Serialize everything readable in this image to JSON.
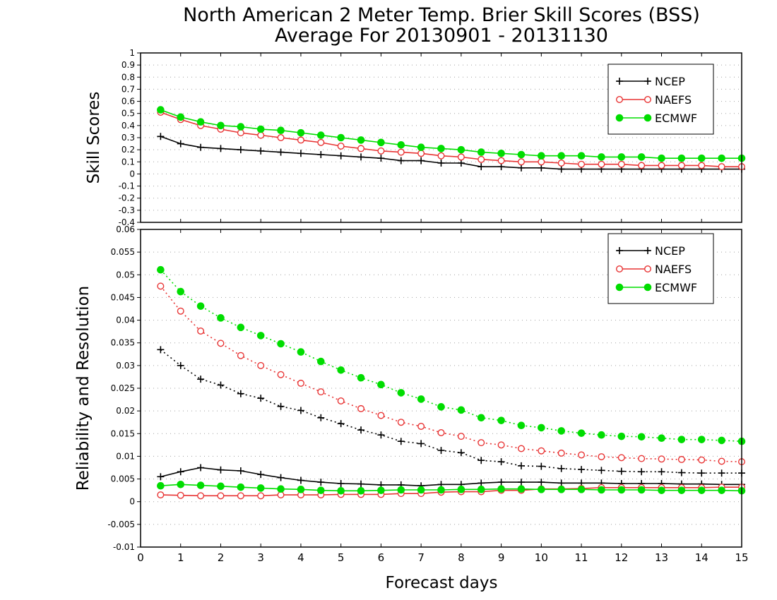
{
  "page": {
    "title_line1": "North American 2 Meter Temp. Brier Skill Scores (BSS)",
    "title_line2": "Average For 20130901 - 20131130"
  },
  "colors": {
    "NCEP": "#000000",
    "NAEFS": "#e83434",
    "ECMWF": "#00dd00",
    "grid": "#a0a0a0"
  },
  "chart_data": [
    {
      "type": "line",
      "title": "",
      "ylabel": "Skill Scores",
      "xlabel": "",
      "xlim": [
        0,
        15
      ],
      "ylim": [
        -0.4,
        1
      ],
      "y_ticks": [
        "1",
        "0.9",
        "0.8",
        "0.7",
        "0.6",
        "0.5",
        "0.4",
        "0.3",
        "0.2",
        "0.1",
        "0",
        "-0.1",
        "-0.2",
        "-0.3",
        "-0.4"
      ],
      "grid": "horizontal dotted",
      "legend_position": "top-right",
      "x": [
        0.5,
        1,
        1.5,
        2,
        2.5,
        3,
        3.5,
        4,
        4.5,
        5,
        5.5,
        6,
        6.5,
        7,
        7.5,
        8,
        8.5,
        9,
        9.5,
        10,
        10.5,
        11,
        11.5,
        12,
        12.5,
        13,
        13.5,
        14,
        14.5,
        15
      ],
      "series": [
        {
          "name": "NCEP",
          "marker": "plus",
          "line": "solid",
          "values": [
            0.31,
            0.25,
            0.22,
            0.21,
            0.2,
            0.19,
            0.18,
            0.17,
            0.16,
            0.15,
            0.14,
            0.13,
            0.11,
            0.11,
            0.09,
            0.09,
            0.06,
            0.06,
            0.05,
            0.05,
            0.04,
            0.04,
            0.04,
            0.04,
            0.04,
            0.04,
            0.04,
            0.04,
            0.04,
            0.04
          ]
        },
        {
          "name": "NAEFS",
          "marker": "open-circle",
          "line": "solid",
          "values": [
            0.51,
            0.45,
            0.4,
            0.37,
            0.34,
            0.32,
            0.3,
            0.28,
            0.26,
            0.23,
            0.21,
            0.19,
            0.18,
            0.17,
            0.15,
            0.14,
            0.12,
            0.11,
            0.1,
            0.1,
            0.09,
            0.08,
            0.08,
            0.08,
            0.07,
            0.07,
            0.07,
            0.07,
            0.06,
            0.06
          ]
        },
        {
          "name": "ECMWF",
          "marker": "filled-circle",
          "line": "solid",
          "values": [
            0.53,
            0.47,
            0.43,
            0.4,
            0.39,
            0.37,
            0.36,
            0.34,
            0.32,
            0.3,
            0.28,
            0.26,
            0.24,
            0.22,
            0.21,
            0.2,
            0.18,
            0.17,
            0.16,
            0.15,
            0.15,
            0.15,
            0.14,
            0.14,
            0.14,
            0.13,
            0.13,
            0.13,
            0.13,
            0.13
          ]
        }
      ]
    },
    {
      "type": "line",
      "title": "",
      "ylabel": "Reliability and Resolution",
      "xlabel": "Forecast days",
      "xlim": [
        0,
        15
      ],
      "ylim": [
        -0.01,
        0.06
      ],
      "y_ticks": [
        "0.06",
        "0.055",
        "0.05",
        "0.045",
        "0.04",
        "0.035",
        "0.03",
        "0.025",
        "0.02",
        "0.015",
        "0.01",
        "0.005",
        "0",
        "-0.005",
        "-0.01"
      ],
      "x_ticks": [
        "0",
        "1",
        "2",
        "3",
        "4",
        "5",
        "6",
        "7",
        "8",
        "9",
        "10",
        "11",
        "12",
        "13",
        "14",
        "15"
      ],
      "grid": "horizontal dotted",
      "legend_position": "top-right",
      "x": [
        0.5,
        1,
        1.5,
        2,
        2.5,
        3,
        3.5,
        4,
        4.5,
        5,
        5.5,
        6,
        6.5,
        7,
        7.5,
        8,
        8.5,
        9,
        9.5,
        10,
        10.5,
        11,
        11.5,
        12,
        12.5,
        13,
        13.5,
        14,
        14.5,
        15
      ],
      "series": [
        {
          "name": "NCEP",
          "marker": "plus",
          "line": "dotted",
          "values": [
            0.0335,
            0.03,
            0.027,
            0.0257,
            0.0238,
            0.0228,
            0.021,
            0.0201,
            0.0185,
            0.0172,
            0.0158,
            0.0147,
            0.0133,
            0.0128,
            0.0113,
            0.0108,
            0.0091,
            0.0088,
            0.0079,
            0.0078,
            0.0073,
            0.0071,
            0.0069,
            0.0067,
            0.0066,
            0.0066,
            0.0064,
            0.0063,
            0.0063,
            0.0063
          ]
        },
        {
          "name": "NAEFS",
          "marker": "open-circle",
          "line": "dotted",
          "values": [
            0.0475,
            0.042,
            0.0376,
            0.0349,
            0.0322,
            0.03,
            0.028,
            0.0261,
            0.0242,
            0.0222,
            0.0205,
            0.019,
            0.0175,
            0.0166,
            0.0152,
            0.0144,
            0.013,
            0.0125,
            0.0117,
            0.0112,
            0.0107,
            0.0103,
            0.0099,
            0.0097,
            0.0095,
            0.0094,
            0.0093,
            0.0092,
            0.0089,
            0.0088
          ]
        },
        {
          "name": "ECMWF",
          "marker": "filled-circle",
          "line": "dotted",
          "values": [
            0.0511,
            0.0463,
            0.0431,
            0.0405,
            0.0384,
            0.0366,
            0.0348,
            0.033,
            0.0309,
            0.029,
            0.0273,
            0.0258,
            0.024,
            0.0226,
            0.0209,
            0.0202,
            0.0185,
            0.0179,
            0.0168,
            0.0163,
            0.0156,
            0.0151,
            0.0147,
            0.0144,
            0.0143,
            0.014,
            0.0137,
            0.0137,
            0.0135,
            0.0133
          ]
        },
        {
          "name": "NCEP",
          "marker": "plus",
          "line": "solid",
          "values": [
            0.0055,
            0.0066,
            0.0075,
            0.007,
            0.0068,
            0.006,
            0.0053,
            0.0047,
            0.0043,
            0.004,
            0.0039,
            0.0037,
            0.0037,
            0.0035,
            0.0038,
            0.0038,
            0.0041,
            0.0043,
            0.0043,
            0.0043,
            0.0041,
            0.0041,
            0.0041,
            0.004,
            0.004,
            0.004,
            0.0039,
            0.0039,
            0.0038,
            0.0038
          ]
        },
        {
          "name": "NAEFS",
          "marker": "open-circle",
          "line": "solid",
          "values": [
            0.0015,
            0.0014,
            0.0013,
            0.0013,
            0.0013,
            0.0013,
            0.0015,
            0.0015,
            0.0015,
            0.0016,
            0.0016,
            0.0016,
            0.0018,
            0.0018,
            0.0021,
            0.0022,
            0.0022,
            0.0025,
            0.0025,
            0.0028,
            0.0028,
            0.0029,
            0.0031,
            0.0031,
            0.0031,
            0.0031,
            0.0031,
            0.0031,
            0.0032,
            0.0032
          ]
        },
        {
          "name": "ECMWF",
          "marker": "filled-circle",
          "line": "solid",
          "values": [
            0.0035,
            0.0038,
            0.0036,
            0.0034,
            0.0032,
            0.003,
            0.0028,
            0.0027,
            0.0025,
            0.0024,
            0.0024,
            0.0025,
            0.0026,
            0.0026,
            0.0026,
            0.0027,
            0.0027,
            0.0028,
            0.0028,
            0.0027,
            0.0027,
            0.0027,
            0.0026,
            0.0026,
            0.0026,
            0.0025,
            0.0025,
            0.0025,
            0.0025,
            0.0024
          ]
        }
      ]
    }
  ]
}
